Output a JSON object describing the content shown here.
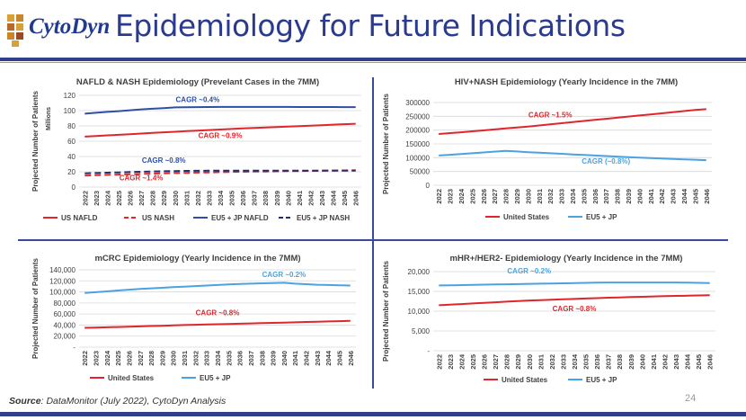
{
  "header": {
    "logo_text": "CytoDyn",
    "title": "Epidemiology for Future Indications"
  },
  "footer": {
    "source_label": "Source",
    "source_text": ": DataMonitor (July 2022), CytoDyn Analysis",
    "page_number": "24"
  },
  "colors": {
    "red": "#e0262b",
    "blue": "#2e4fa3",
    "lightblue": "#4aa3e0",
    "navy": "#1f2f6e",
    "text": "#404040",
    "grid": "#d9d9d9"
  },
  "chart_data": [
    {
      "id": "nafld",
      "type": "line",
      "title": "NAFLD & NASH Epidemiology (Prevelant Cases in the 7MM)",
      "ylabel": "Projected Number of Patients",
      "yunit": "Millions",
      "ylim": [
        0,
        120
      ],
      "yticks": [
        "0",
        "20",
        "40",
        "60",
        "80",
        "100",
        "120"
      ],
      "x": [
        "2022",
        "2023",
        "2024",
        "2025",
        "2026",
        "2027",
        "2028",
        "2029",
        "2030",
        "2031",
        "2032",
        "2033",
        "2034",
        "2035",
        "2036",
        "2037",
        "2038",
        "2039",
        "2040",
        "2041",
        "2042",
        "2043",
        "2044",
        "2045",
        "2046"
      ],
      "series": [
        {
          "name": "US NAFLD",
          "color": "#e0262b",
          "dash": false,
          "values": [
            66,
            66.8,
            67.6,
            68.4,
            69.2,
            70,
            70.8,
            71.6,
            72.4,
            73.2,
            73.9,
            74.6,
            75.3,
            76,
            76.7,
            77.4,
            78,
            78.6,
            79.2,
            79.8,
            80.4,
            81,
            81.6,
            82.2,
            82.8
          ]
        },
        {
          "name": "US NASH",
          "color": "#e0262b",
          "dash": true,
          "values": [
            15,
            15.5,
            16,
            16.4,
            16.8,
            17.2,
            17.6,
            18,
            18.3,
            18.6,
            18.9,
            19.2,
            19.5,
            19.8,
            20,
            20.2,
            20.4,
            20.6,
            20.8,
            21,
            21.2,
            21.4,
            21.6,
            21.8,
            22
          ]
        },
        {
          "name": "EU5 + JP NAFLD",
          "color": "#2e4fa3",
          "dash": false,
          "values": [
            96,
            97.2,
            98.3,
            99.3,
            100.5,
            101.6,
            102.5,
            103.3,
            104.2,
            104.5,
            104.6,
            104.7,
            104.8,
            104.8,
            104.8,
            104.8,
            104.8,
            104.8,
            104.8,
            104.7,
            104.7,
            104.7,
            104.7,
            104.6,
            104.6
          ]
        },
        {
          "name": "EU5 + JP NASH",
          "color": "#1f2f6e",
          "dash": true,
          "values": [
            18,
            18.4,
            18.8,
            19.2,
            19.6,
            20,
            20.4,
            20.7,
            21,
            21.2,
            21.3,
            21.4,
            21.5,
            21.5,
            21.5,
            21.5,
            21.5,
            21.5,
            21.5,
            21.5,
            21.5,
            21.5,
            21.5,
            21.5,
            21.5
          ]
        }
      ],
      "annotations": [
        {
          "text": "CAGR ~0.4%",
          "color": "#2e4fa3",
          "x": 2032,
          "y": 111
        },
        {
          "text": "CAGR ~0.9%",
          "color": "#e0262b",
          "x": 2034,
          "y": 64
        },
        {
          "text": "CAGR ~0.8%",
          "color": "#2e4fa3",
          "x": 2029,
          "y": 32
        },
        {
          "text": "CAGR ~1.4%",
          "color": "#e0262b",
          "x": 2027,
          "y": 9
        }
      ]
    },
    {
      "id": "hivnash",
      "type": "line",
      "title": "HIV+NASH Epidemiology (Yearly Incidence in the 7MM)",
      "ylabel": "Projected Number of Patients",
      "yunit": "",
      "ylim": [
        0,
        300000
      ],
      "yticks": [
        "0",
        "50000",
        "100000",
        "150000",
        "200000",
        "250000",
        "300000"
      ],
      "x": [
        "2022",
        "2023",
        "2024",
        "2025",
        "2026",
        "2027",
        "2028",
        "2029",
        "2030",
        "2031",
        "2032",
        "2033",
        "2034",
        "2035",
        "2036",
        "2037",
        "2038",
        "2039",
        "2040",
        "2041",
        "2042",
        "2043",
        "2044",
        "2045",
        "2046"
      ],
      "series": [
        {
          "name": "United States",
          "color": "#e0262b",
          "dash": false,
          "values": [
            186000,
            189000,
            192000,
            195500,
            199000,
            202500,
            206000,
            209500,
            213000,
            217000,
            221000,
            225000,
            229000,
            233000,
            237000,
            241000,
            245000,
            249000,
            253000,
            257000,
            261000,
            265000,
            269000,
            273000,
            276000
          ]
        },
        {
          "name": "EU5 + JP",
          "color": "#4aa3e0",
          "dash": false,
          "values": [
            108000,
            110500,
            113000,
            116000,
            119000,
            122000,
            125000,
            122500,
            120000,
            118000,
            116000,
            114000,
            112000,
            110000,
            108000,
            106000,
            104000,
            102000,
            100000,
            98500,
            97000,
            95500,
            94000,
            92500,
            91000
          ]
        }
      ],
      "annotations": [
        {
          "text": "CAGR ~1.5%",
          "color": "#e0262b",
          "x": 2032,
          "y": 247000
        },
        {
          "text": "CAGR (~0.8%)",
          "color": "#4aa3e0",
          "x": 2037,
          "y": 78000
        }
      ]
    },
    {
      "id": "mcrc",
      "type": "line",
      "title": "mCRC Epidemiology (Yearly Incidence in the 7MM)",
      "ylabel": "Projected Number of Patients",
      "yunit": "",
      "ylim": [
        0,
        140000
      ],
      "yticks": [
        "-",
        "20,000",
        "40,000",
        "60,000",
        "80,000",
        "100,000",
        "120,000",
        "140,000"
      ],
      "x": [
        "2022",
        "2023",
        "2024",
        "2025",
        "2026",
        "2027",
        "2028",
        "2029",
        "2030",
        "2031",
        "2032",
        "2033",
        "2034",
        "2035",
        "2036",
        "2037",
        "2038",
        "2039",
        "2040",
        "2041",
        "2042",
        "2043",
        "2044",
        "2045",
        "2046"
      ],
      "series": [
        {
          "name": "United States",
          "color": "#e0262b",
          "dash": false,
          "values": [
            35000,
            35500,
            36000,
            36500,
            37000,
            37600,
            38200,
            38800,
            39400,
            40000,
            40500,
            41000,
            41500,
            42000,
            42500,
            43000,
            43500,
            44000,
            44500,
            45000,
            45500,
            46000,
            46500,
            47000,
            47500
          ]
        },
        {
          "name": "EU5 + JP",
          "color": "#4aa3e0",
          "dash": false,
          "values": [
            98000,
            99500,
            101000,
            102500,
            104000,
            105500,
            106500,
            107500,
            108500,
            109500,
            110500,
            111500,
            112500,
            113500,
            114500,
            115000,
            115500,
            116000,
            116500,
            115000,
            114000,
            113000,
            112500,
            112000,
            111500
          ]
        }
      ],
      "annotations": [
        {
          "text": "CAGR ~0.2%",
          "color": "#4aa3e0",
          "x": 2040,
          "y": 127000
        },
        {
          "text": "CAGR ~0.8%",
          "color": "#e0262b",
          "x": 2034,
          "y": 58000
        }
      ]
    },
    {
      "id": "mhr",
      "type": "line",
      "title": "mHR+/HER2- Epidemiology (Yearly Incidence in the 7MM)",
      "ylabel": "Projected Number of Patients",
      "yunit": "",
      "ylim": [
        0,
        20000
      ],
      "yticks": [
        "-",
        "5,000",
        "10,000",
        "15,000",
        "20,000"
      ],
      "x": [
        "2022",
        "2023",
        "2024",
        "2025",
        "2026",
        "2027",
        "2028",
        "2029",
        "2030",
        "2031",
        "2032",
        "2033",
        "2034",
        "2035",
        "2036",
        "2037",
        "2038",
        "2039",
        "2040",
        "2041",
        "2042",
        "2043",
        "2044",
        "2045",
        "2046"
      ],
      "series": [
        {
          "name": "United States",
          "color": "#e0262b",
          "dash": false,
          "values": [
            11500,
            11650,
            11800,
            11950,
            12100,
            12250,
            12400,
            12550,
            12700,
            12800,
            12900,
            13000,
            13100,
            13200,
            13300,
            13400,
            13480,
            13560,
            13640,
            13720,
            13800,
            13860,
            13920,
            13980,
            14040
          ]
        },
        {
          "name": "EU5 + JP",
          "color": "#4aa3e0",
          "dash": false,
          "values": [
            16500,
            16550,
            16600,
            16650,
            16700,
            16750,
            16800,
            16850,
            16900,
            16950,
            17000,
            17050,
            17100,
            17150,
            17200,
            17250,
            17250,
            17250,
            17250,
            17250,
            17250,
            17250,
            17200,
            17150,
            17100
          ]
        }
      ],
      "annotations": [
        {
          "text": "CAGR ~0.2%",
          "color": "#4aa3e0",
          "x": 2030,
          "y": 19500
        },
        {
          "text": "CAGR ~0.8%",
          "color": "#e0262b",
          "x": 2034,
          "y": 10000
        }
      ]
    }
  ]
}
